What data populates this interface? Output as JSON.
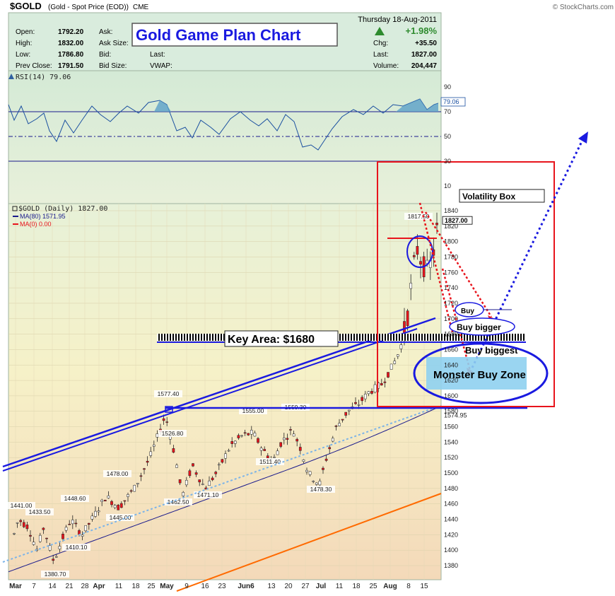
{
  "header": {
    "symbol": "$GOLD",
    "description": "(Gold - Spot Price (EOD))",
    "exchange": "CME",
    "source": "© StockCharts.com",
    "date": "Thursday  18-Aug-2011",
    "fields": [
      {
        "label": "Open:",
        "value": "1792.20"
      },
      {
        "label": "High:",
        "value": "1832.00"
      },
      {
        "label": "Low:",
        "value": "1786.80"
      },
      {
        "label": "Prev Close:",
        "value": "1791.50"
      }
    ],
    "mid_labels": [
      "Ask:",
      "Ask Size:",
      "Bid:",
      "Bid Size:"
    ],
    "mid_labels2": [
      "Last:",
      "VWAP:"
    ],
    "right_fields": [
      {
        "label": "Chg:",
        "value": "+35.50"
      },
      {
        "label": "Last:",
        "value": "1827.00"
      },
      {
        "label": "Volume:",
        "value": "204,447"
      }
    ],
    "pct_change": "+1.98%",
    "up_arrow_color": "#2e8b2e"
  },
  "title_box": "Gold Game Plan Chart",
  "rsi": {
    "label": "RSI(14) 79.06",
    "current_tag": "79.06",
    "levels": [
      "90",
      "70",
      "50",
      "30",
      "10"
    ]
  },
  "price_legend": {
    "main": "$GOLD (Daily) 1827.00",
    "ma80": "MA(80) 1571.95",
    "ma0": "MA(0) 0.00"
  },
  "price_axis": [
    "1840",
    "1820",
    "1800",
    "1780",
    "1760",
    "1740",
    "1720",
    "1700",
    "1680",
    "1660",
    "1640",
    "1620",
    "1600",
    "1580",
    "1560",
    "1540",
    "1520",
    "1500",
    "1480",
    "1460",
    "1440",
    "1420",
    "1400",
    "1380"
  ],
  "price_axis_partial": "1574.95",
  "current_price_tag": "1827.00",
  "date_axis": [
    "Mar",
    "7",
    "14",
    "21",
    "28",
    "Apr",
    "11",
    "18",
    "25",
    "May",
    "9",
    "16",
    "23",
    "Jun6",
    "13",
    "20",
    "27",
    "Jul",
    "11",
    "18",
    "25",
    "Aug",
    "8",
    "15"
  ],
  "date_axis_display": [
    "Mar",
    "7",
    "14",
    "21",
    "28",
    "Apr",
    "11",
    "18",
    "25",
    "May",
    "9",
    "16",
    "23",
    "Jun6",
    "13",
    "20",
    "27",
    "Jul",
    "11",
    "18",
    "25",
    "Aug",
    "8",
    "15"
  ],
  "annotations": {
    "key_area": "Key Area: $1680",
    "volatility_box": "Volatility Box",
    "buy": "Buy",
    "buy_bigger": "Buy bigger",
    "buy_biggest": "Buy biggest",
    "monster": "Monster Buy Zone"
  },
  "price_labels": [
    {
      "text": "1441.00"
    },
    {
      "text": "1433.50"
    },
    {
      "text": "1448.60"
    },
    {
      "text": "1410.10"
    },
    {
      "text": "1380.70"
    },
    {
      "text": "1478.00"
    },
    {
      "text": "1445.00"
    },
    {
      "text": "1577.40"
    },
    {
      "text": "1526.80"
    },
    {
      "text": "1462.50"
    },
    {
      "text": "1471.10"
    },
    {
      "text": "1555.00"
    },
    {
      "text": "1511.40"
    },
    {
      "text": "1559.30"
    },
    {
      "text": "1478.30"
    },
    {
      "text": "1817.50"
    }
  ],
  "colors": {
    "red": "#e8141c",
    "blue": "#1a1ae0",
    "up_candle": "#ffffff",
    "down_candle": "#e8141c",
    "ma_line": "#1a1a8c",
    "orange_line": "#ff6a00",
    "dotted_blue": "#7cb4e8"
  },
  "chart_data": {
    "type": "line",
    "title": "$GOLD (Gold - Spot Price (EOD))",
    "x": [
      "Mar 1",
      "Mar 7",
      "Mar 14",
      "Mar 21",
      "Mar 28",
      "Apr 4",
      "Apr 11",
      "Apr 18",
      "Apr 25",
      "May 2",
      "May 9",
      "May 16",
      "May 23",
      "May 30",
      "Jun 6",
      "Jun 13",
      "Jun 20",
      "Jun 27",
      "Jul 4",
      "Jul 11",
      "Jul 18",
      "Jul 25",
      "Aug 1",
      "Aug 8",
      "Aug 15",
      "Aug 18"
    ],
    "series": [
      {
        "name": "$GOLD",
        "values": [
          1410,
          1435,
          1395,
          1420,
          1425,
          1440,
          1460,
          1495,
          1505,
          1560,
          1495,
          1480,
          1510,
          1535,
          1540,
          1545,
          1525,
          1535,
          1500,
          1485,
          1555,
          1605,
          1615,
          1660,
          1780,
          1827
        ]
      },
      {
        "name": "MA(80)",
        "values": [
          1375,
          1380,
          1385,
          1392,
          1400,
          1408,
          1417,
          1426,
          1435,
          1446,
          1455,
          1462,
          1470,
          1477,
          1483,
          1488,
          1495,
          1500,
          1505,
          1512,
          1522,
          1533,
          1545,
          1556,
          1566,
          1571.95
        ]
      }
    ],
    "ylim": [
      1370,
      1845
    ],
    "rsi_values": [
      72,
      65,
      55,
      48,
      60,
      52,
      58,
      66,
      70,
      78,
      45,
      50,
      55,
      60,
      58,
      62,
      52,
      56,
      40,
      44,
      60,
      66,
      64,
      70,
      76,
      79.06
    ],
    "rsi_ylim": [
      0,
      100
    ]
  }
}
